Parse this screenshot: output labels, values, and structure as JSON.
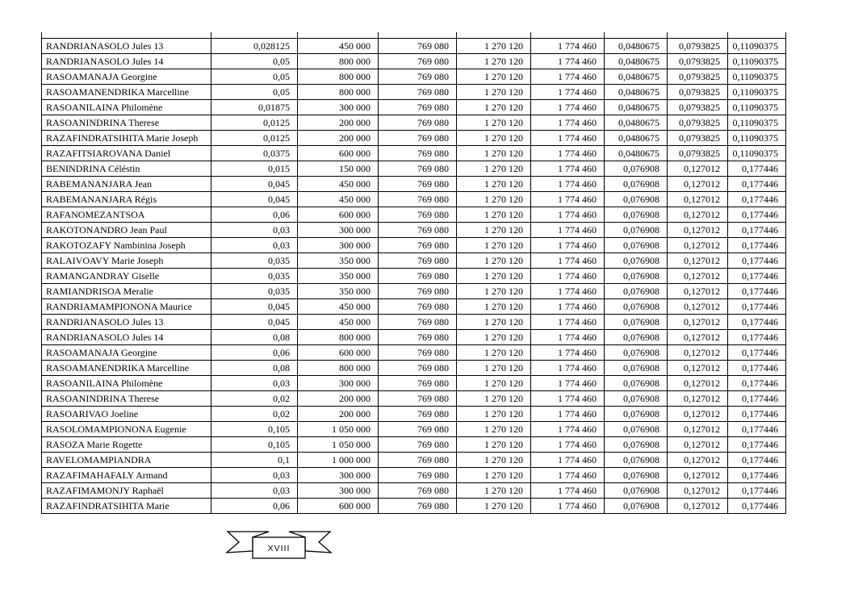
{
  "document": {
    "page_number_banner": "XVIII"
  },
  "table": {
    "rows": [
      [
        "RANDRIANASOLO Jules 13",
        "0,028125",
        "450 000",
        "769 080",
        "1 270 120",
        "1 774 460",
        "0,0480675",
        "0,0793825",
        "0,11090375"
      ],
      [
        "RANDRIANASOLO Jules 14",
        "0,05",
        "800 000",
        "769 080",
        "1 270 120",
        "1 774 460",
        "0,0480675",
        "0,0793825",
        "0,11090375"
      ],
      [
        "RASOAMANAJA Georgine",
        "0,05",
        "800 000",
        "769 080",
        "1 270 120",
        "1 774 460",
        "0,0480675",
        "0,0793825",
        "0,11090375"
      ],
      [
        "RASOAMANENDRIKA Marcelline",
        "0,05",
        "800 000",
        "769 080",
        "1 270 120",
        "1 774 460",
        "0,0480675",
        "0,0793825",
        "0,11090375"
      ],
      [
        "RASOANILAINA Philomène",
        "0,01875",
        "300 000",
        "769 080",
        "1 270 120",
        "1 774 460",
        "0,0480675",
        "0,0793825",
        "0,11090375"
      ],
      [
        "RASOANINDRINA Therese",
        "0,0125",
        "200 000",
        "769 080",
        "1 270 120",
        "1 774 460",
        "0,0480675",
        "0,0793825",
        "0,11090375"
      ],
      [
        "RAZAFINDRATSIHITA Marie Joseph",
        "0,0125",
        "200 000",
        "769 080",
        "1 270 120",
        "1 774 460",
        "0,0480675",
        "0,0793825",
        "0,11090375"
      ],
      [
        "RAZAFITSIAROVANA Daniel",
        "0,0375",
        "600 000",
        "769 080",
        "1 270 120",
        "1 774 460",
        "0,0480675",
        "0,0793825",
        "0,11090375"
      ],
      [
        "BENINDRINA Céléstin",
        "0,015",
        "150 000",
        "769 080",
        "1 270 120",
        "1 774 460",
        "0,076908",
        "0,127012",
        "0,177446"
      ],
      [
        "RABEMANANJARA Jean",
        "0,045",
        "450 000",
        "769 080",
        "1 270 120",
        "1 774 460",
        "0,076908",
        "0,127012",
        "0,177446"
      ],
      [
        "RABEMANANJARA Régis",
        "0,045",
        "450 000",
        "769 080",
        "1 270 120",
        "1 774 460",
        "0,076908",
        "0,127012",
        "0,177446"
      ],
      [
        "RAFANOMEZANTSOA",
        "0,06",
        "600 000",
        "769 080",
        "1 270 120",
        "1 774 460",
        "0,076908",
        "0,127012",
        "0,177446"
      ],
      [
        "RAKOTONANDRO Jean Paul",
        "0,03",
        "300 000",
        "769 080",
        "1 270 120",
        "1 774 460",
        "0,076908",
        "0,127012",
        "0,177446"
      ],
      [
        "RAKOTOZAFY Nambinina Joseph",
        "0,03",
        "300 000",
        "769 080",
        "1 270 120",
        "1 774 460",
        "0,076908",
        "0,127012",
        "0,177446"
      ],
      [
        "RALAIVOAVY Marie Joseph",
        "0,035",
        "350 000",
        "769 080",
        "1 270 120",
        "1 774 460",
        "0,076908",
        "0,127012",
        "0,177446"
      ],
      [
        "RAMANGANDRAY Giselle",
        "0,035",
        "350 000",
        "769 080",
        "1 270 120",
        "1 774 460",
        "0,076908",
        "0,127012",
        "0,177446"
      ],
      [
        "RAMIANDRISOA Meralie",
        "0,035",
        "350 000",
        "769 080",
        "1 270 120",
        "1 774 460",
        "0,076908",
        "0,127012",
        "0,177446"
      ],
      [
        "RANDRIAMAMPIONONA Maurice",
        "0,045",
        "450 000",
        "769 080",
        "1 270 120",
        "1 774 460",
        "0,076908",
        "0,127012",
        "0,177446"
      ],
      [
        "RANDRIANASOLO Jules 13",
        "0,045",
        "450 000",
        "769 080",
        "1 270 120",
        "1 774 460",
        "0,076908",
        "0,127012",
        "0,177446"
      ],
      [
        "RANDRIANASOLO Jules 14",
        "0,08",
        "800 000",
        "769 080",
        "1 270 120",
        "1 774 460",
        "0,076908",
        "0,127012",
        "0,177446"
      ],
      [
        "RASOAMANAJA Georgine",
        "0,06",
        "600 000",
        "769 080",
        "1 270 120",
        "1 774 460",
        "0,076908",
        "0,127012",
        "0,177446"
      ],
      [
        "RASOAMANENDRIKA Marcelline",
        "0,08",
        "800 000",
        "769 080",
        "1 270 120",
        "1 774 460",
        "0,076908",
        "0,127012",
        "0,177446"
      ],
      [
        "RASOANILAINA Philomène",
        "0,03",
        "300 000",
        "769 080",
        "1 270 120",
        "1 774 460",
        "0,076908",
        "0,127012",
        "0,177446"
      ],
      [
        "RASOANINDRINA Therese",
        "0,02",
        "200 000",
        "769 080",
        "1 270 120",
        "1 774 460",
        "0,076908",
        "0,127012",
        "0,177446"
      ],
      [
        "RASOARIVAO Joeline",
        "0,02",
        "200 000",
        "769 080",
        "1 270 120",
        "1 774 460",
        "0,076908",
        "0,127012",
        "0,177446"
      ],
      [
        "RASOLOMAMPIONONA Eugenie",
        "0,105",
        "1 050 000",
        "769 080",
        "1 270 120",
        "1 774 460",
        "0,076908",
        "0,127012",
        "0,177446"
      ],
      [
        "RASOZA Marie Rogette",
        "0,105",
        "1 050 000",
        "769 080",
        "1 270 120",
        "1 774 460",
        "0,076908",
        "0,127012",
        "0,177446"
      ],
      [
        "RAVELOMAMPIANDRA",
        "0,1",
        "1 000 000",
        "769 080",
        "1 270 120",
        "1 774 460",
        "0,076908",
        "0,127012",
        "0,177446"
      ],
      [
        "RAZAFIMAHAFALY Armand",
        "0,03",
        "300 000",
        "769 080",
        "1 270 120",
        "1 774 460",
        "0,076908",
        "0,127012",
        "0,177446"
      ],
      [
        "RAZAFIMAMONJY Raphaël",
        "0,03",
        "300 000",
        "769 080",
        "1 270 120",
        "1 774 460",
        "0,076908",
        "0,127012",
        "0,177446"
      ],
      [
        "RAZAFINDRATSIHITA Marie",
        "0,06",
        "600 000",
        "769 080",
        "1 270 120",
        "1 774 460",
        "0,076908",
        "0,127012",
        "0,177446"
      ]
    ]
  }
}
